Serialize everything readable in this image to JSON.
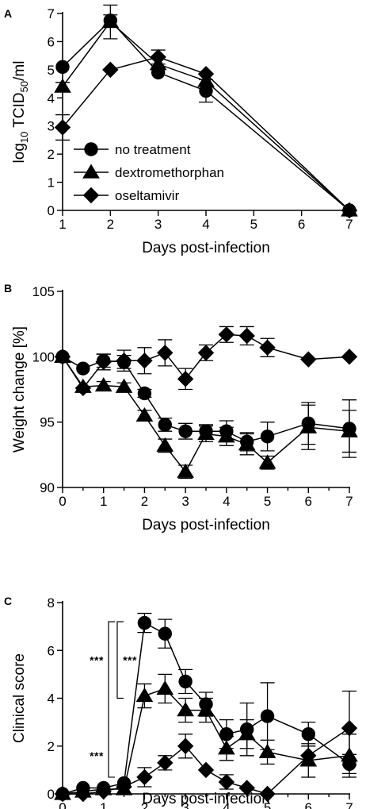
{
  "chart_data": [
    {
      "panel": "A",
      "type": "line",
      "xlabel": "Days post-infection",
      "ylabel": "log10 TCID50/ml",
      "ylabel_parts": {
        "pre": "log",
        "sub1": "10",
        "mid": " TCID",
        "sub2": "50",
        "post": "/ml"
      },
      "xlim": [
        1,
        7
      ],
      "ylim": [
        0,
        7
      ],
      "xticks": [
        1,
        2,
        3,
        4,
        5,
        6,
        7
      ],
      "yticks": [
        0,
        1,
        2,
        3,
        4,
        5,
        6,
        7
      ],
      "legend": {
        "placement": "lower-left"
      },
      "series": [
        {
          "name": "no treatment",
          "marker": "circle",
          "points": [
            {
              "x": 1,
              "y": 5.1,
              "err": 0
            },
            {
              "x": 2,
              "y": 6.75,
              "err": 0.2
            },
            {
              "x": 3,
              "y": 4.9,
              "err": 0
            },
            {
              "x": 4,
              "y": 4.25,
              "err": 0.4
            },
            {
              "x": 7,
              "y": 0,
              "err": 0
            }
          ]
        },
        {
          "name": "dextromethorphan",
          "marker": "triangle",
          "points": [
            {
              "x": 1,
              "y": 4.4,
              "err": 0.15
            },
            {
              "x": 2,
              "y": 6.7,
              "err": 0.6
            },
            {
              "x": 3,
              "y": 5.2,
              "err": 0
            },
            {
              "x": 4,
              "y": 4.6,
              "err": 0
            },
            {
              "x": 7,
              "y": 0,
              "err": 0
            }
          ]
        },
        {
          "name": "oseltamivir",
          "marker": "diamond",
          "points": [
            {
              "x": 1,
              "y": 2.95,
              "err": 0.45
            },
            {
              "x": 2,
              "y": 5.0,
              "err": 0
            },
            {
              "x": 3,
              "y": 5.45,
              "err": 0.25
            },
            {
              "x": 4,
              "y": 4.85,
              "err": 0
            },
            {
              "x": 7,
              "y": 0,
              "err": 0
            }
          ]
        }
      ]
    },
    {
      "panel": "B",
      "type": "line",
      "xlabel": "Days post-infection",
      "ylabel": "Weight change [%]",
      "xlim": [
        0,
        7
      ],
      "ylim": [
        90,
        105
      ],
      "xticks": [
        0,
        1,
        2,
        3,
        4,
        5,
        6,
        7
      ],
      "yticks": [
        90,
        95,
        100,
        105
      ],
      "series": [
        {
          "name": "no treatment",
          "marker": "circle",
          "points": [
            {
              "x": 0,
              "y": 100,
              "err": 0
            },
            {
              "x": 0.5,
              "y": 99.1,
              "err": 0
            },
            {
              "x": 1,
              "y": 99.7,
              "err": 0.5
            },
            {
              "x": 1.5,
              "y": 99.6,
              "err": 0.5
            },
            {
              "x": 2,
              "y": 97.2,
              "err": 0.3
            },
            {
              "x": 2.5,
              "y": 94.8,
              "err": 0.5
            },
            {
              "x": 3,
              "y": 94.3,
              "err": 0.6
            },
            {
              "x": 3.5,
              "y": 94.3,
              "err": 0.5
            },
            {
              "x": 4,
              "y": 94.3,
              "err": 0.8
            },
            {
              "x": 4.5,
              "y": 93.5,
              "err": 0.7
            },
            {
              "x": 5,
              "y": 93.9,
              "err": 1.1
            },
            {
              "x": 6,
              "y": 94.9,
              "err": 1.6
            },
            {
              "x": 7,
              "y": 94.5,
              "err": 2.2
            }
          ]
        },
        {
          "name": "dextromethorphan",
          "marker": "triangle",
          "points": [
            {
              "x": 0,
              "y": 100,
              "err": 0
            },
            {
              "x": 0.5,
              "y": 97.7,
              "err": 0
            },
            {
              "x": 1,
              "y": 97.8,
              "err": 0.3
            },
            {
              "x": 1.5,
              "y": 97.7,
              "err": 0.3
            },
            {
              "x": 2,
              "y": 95.5,
              "err": 0.4
            },
            {
              "x": 2.5,
              "y": 93.2,
              "err": 0.5
            },
            {
              "x": 3,
              "y": 91.2,
              "err": 0.5
            },
            {
              "x": 3.5,
              "y": 94.1,
              "err": 0.6
            },
            {
              "x": 4,
              "y": 93.9,
              "err": 0.7
            },
            {
              "x": 4.5,
              "y": 93.3,
              "err": 0.8
            },
            {
              "x": 5,
              "y": 91.9,
              "err": 0.5
            },
            {
              "x": 6,
              "y": 94.6,
              "err": 1.7
            },
            {
              "x": 7,
              "y": 94.3,
              "err": 1.6
            }
          ]
        },
        {
          "name": "oseltamivir",
          "marker": "diamond",
          "points": [
            {
              "x": 0,
              "y": 100,
              "err": 0
            },
            {
              "x": 0.5,
              "y": 97.6,
              "err": 0
            },
            {
              "x": 1,
              "y": 99.6,
              "err": 0.6
            },
            {
              "x": 1.5,
              "y": 99.7,
              "err": 0.8
            },
            {
              "x": 2,
              "y": 99.7,
              "err": 1.0
            },
            {
              "x": 2.5,
              "y": 100.3,
              "err": 1.0
            },
            {
              "x": 3,
              "y": 98.3,
              "err": 0.8
            },
            {
              "x": 3.5,
              "y": 100.3,
              "err": 0.6
            },
            {
              "x": 4,
              "y": 101.7,
              "err": 0.6
            },
            {
              "x": 4.5,
              "y": 101.6,
              "err": 0.7
            },
            {
              "x": 5,
              "y": 100.7,
              "err": 0.7
            },
            {
              "x": 6,
              "y": 99.8,
              "err": 0
            },
            {
              "x": 7,
              "y": 100.0,
              "err": 0
            }
          ]
        }
      ]
    },
    {
      "panel": "C",
      "type": "line",
      "xlabel": "Days post-infection",
      "ylabel": "Clinical score",
      "xlim": [
        0,
        7
      ],
      "ylim": [
        0,
        8
      ],
      "xticks": [
        0,
        1,
        2,
        3,
        4,
        5,
        6,
        7
      ],
      "yticks": [
        0,
        2,
        4,
        6,
        8
      ],
      "annotations": [
        {
          "text": "***",
          "between": [
            "no treatment",
            "oseltamivir"
          ]
        },
        {
          "text": "***",
          "between": [
            "no treatment",
            "dextromethorphan"
          ]
        },
        {
          "text": "***",
          "between": [
            "dextromethorphan",
            "oseltamivir"
          ]
        }
      ],
      "series": [
        {
          "name": "no treatment",
          "marker": "circle",
          "points": [
            {
              "x": 0,
              "y": 0,
              "err": 0
            },
            {
              "x": 0.5,
              "y": 0.25,
              "err": 0
            },
            {
              "x": 1,
              "y": 0.25,
              "err": 0
            },
            {
              "x": 1.5,
              "y": 0.45,
              "err": 0
            },
            {
              "x": 2,
              "y": 7.15,
              "err": 0.4
            },
            {
              "x": 2.5,
              "y": 6.7,
              "err": 0.6
            },
            {
              "x": 3,
              "y": 4.7,
              "err": 0.5
            },
            {
              "x": 3.5,
              "y": 3.75,
              "err": 0.5
            },
            {
              "x": 4,
              "y": 2.5,
              "err": 0.6
            },
            {
              "x": 4.5,
              "y": 2.7,
              "err": 1.1
            },
            {
              "x": 5,
              "y": 3.25,
              "err": 1.4
            },
            {
              "x": 6,
              "y": 2.5,
              "err": 0.5
            },
            {
              "x": 7,
              "y": 1.25,
              "err": 0.4
            }
          ]
        },
        {
          "name": "dextromethorphan",
          "marker": "triangle",
          "points": [
            {
              "x": 0,
              "y": 0,
              "err": 0
            },
            {
              "x": 0.5,
              "y": 0.1,
              "err": 0
            },
            {
              "x": 1,
              "y": 0.2,
              "err": 0
            },
            {
              "x": 1.5,
              "y": 0.2,
              "err": 0
            },
            {
              "x": 2,
              "y": 4.1,
              "err": 0.5
            },
            {
              "x": 2.5,
              "y": 4.4,
              "err": 0.6
            },
            {
              "x": 3,
              "y": 3.5,
              "err": 0.5
            },
            {
              "x": 3.5,
              "y": 3.5,
              "err": 0.5
            },
            {
              "x": 4,
              "y": 1.9,
              "err": 0.5
            },
            {
              "x": 4.5,
              "y": 2.5,
              "err": 0.6
            },
            {
              "x": 5,
              "y": 1.75,
              "err": 0.5
            },
            {
              "x": 6,
              "y": 1.4,
              "err": 0.7
            },
            {
              "x": 7,
              "y": 1.6,
              "err": 0.9
            }
          ]
        },
        {
          "name": "oseltamivir",
          "marker": "diamond",
          "points": [
            {
              "x": 0,
              "y": 0,
              "err": 0
            },
            {
              "x": 0.5,
              "y": 0,
              "err": 0
            },
            {
              "x": 1,
              "y": 0.1,
              "err": 0
            },
            {
              "x": 1.5,
              "y": 0.3,
              "err": 0
            },
            {
              "x": 2,
              "y": 0.7,
              "err": 0.4
            },
            {
              "x": 2.5,
              "y": 1.3,
              "err": 0.3
            },
            {
              "x": 3,
              "y": 2.0,
              "err": 0.5
            },
            {
              "x": 3.5,
              "y": 1.0,
              "err": 0
            },
            {
              "x": 4,
              "y": 0.5,
              "err": 0.3
            },
            {
              "x": 4.5,
              "y": 0.25,
              "err": 0
            },
            {
              "x": 5,
              "y": 0.0,
              "err": 0
            },
            {
              "x": 6,
              "y": 1.6,
              "err": 0.4
            },
            {
              "x": 7,
              "y": 2.75,
              "err": 1.55
            }
          ]
        }
      ]
    }
  ]
}
